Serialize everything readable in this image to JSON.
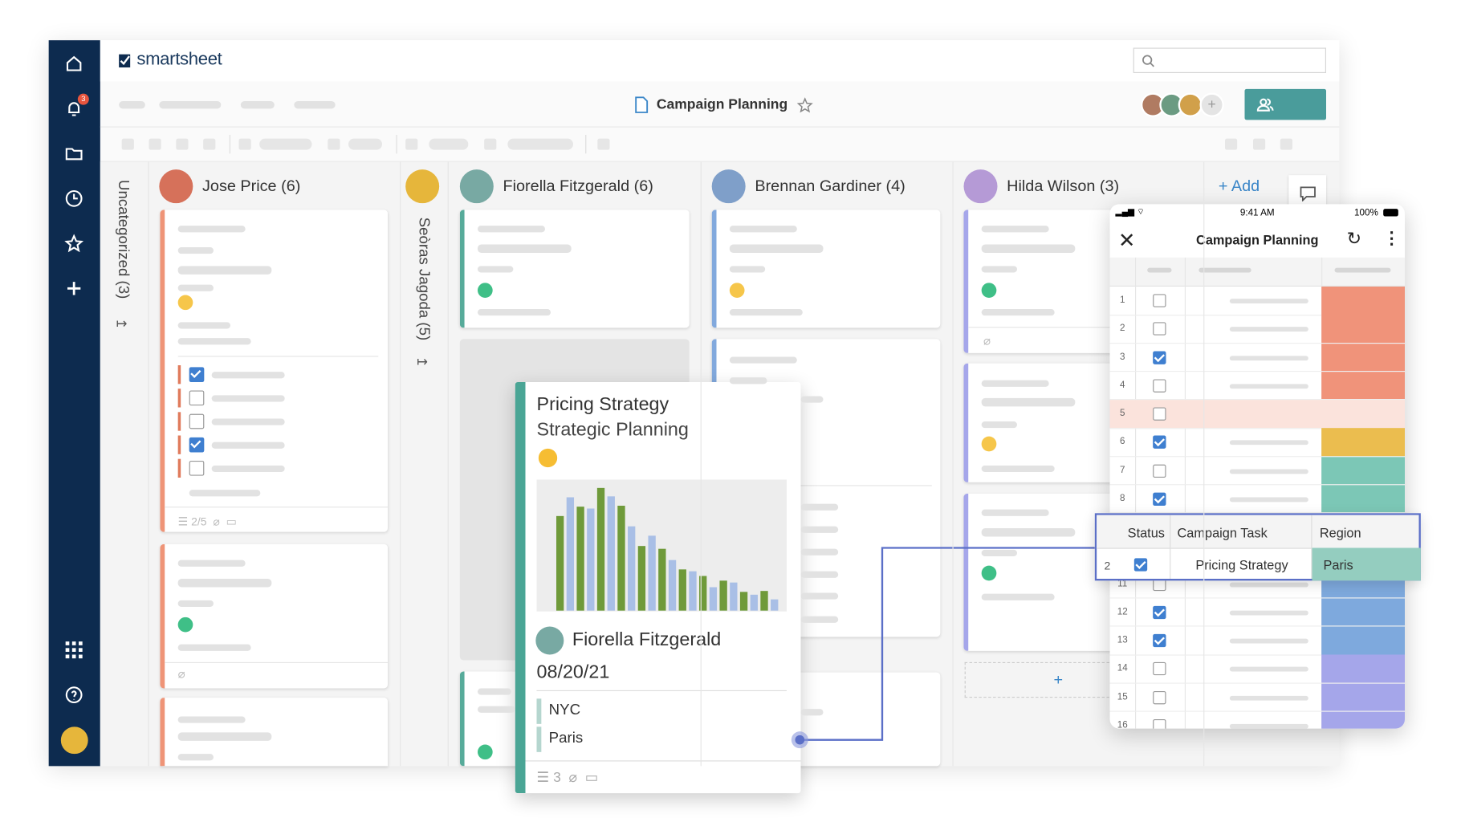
{
  "app": {
    "brand": "smartsheet",
    "sheet_title": "Campaign Planning",
    "notification_count": "3",
    "add_lane": "+ Add"
  },
  "lanes": {
    "uncategorized": "Uncategorized (3)",
    "jose": "Jose Price (6)",
    "seoras": "Seòras Jagoda (5)",
    "fiorella": "Fiorella Fitzgerald (6)",
    "brennan": "Brennan Gardiner (4)",
    "hilda": "Hilda Wilson (3)"
  },
  "jose_card": {
    "checklist_count": "2/5"
  },
  "detail_card": {
    "title": "Pricing Strategy",
    "subtitle": "Strategic Planning",
    "assignee": "Fiorella Fitzgerald",
    "date": "08/20/21",
    "regions": [
      "NYC",
      "Paris"
    ],
    "attachment_count": "3"
  },
  "mobile": {
    "time": "9:41 AM",
    "battery": "100%",
    "title": "Campaign Planning",
    "rows": [
      {
        "number": "1",
        "checked": false,
        "color": "#f0937a"
      },
      {
        "number": "2",
        "checked": false,
        "color": "#f0937a"
      },
      {
        "number": "3",
        "checked": true,
        "color": "#f0937a"
      },
      {
        "number": "4",
        "checked": false,
        "color": "#f0937a"
      },
      {
        "number": "5",
        "checked": false,
        "color": "#fbe3dc"
      },
      {
        "number": "6",
        "checked": true,
        "color": "#ebbd4f"
      },
      {
        "number": "7",
        "checked": false,
        "color": "#7cc7b6"
      },
      {
        "number": "8",
        "checked": true,
        "color": "#7cc7b6"
      },
      {
        "number": "11",
        "checked": false,
        "color": "#7ea9dd"
      },
      {
        "number": "12",
        "checked": true,
        "color": "#7ea9dd"
      },
      {
        "number": "13",
        "checked": true,
        "color": "#7ea9dd"
      },
      {
        "number": "14",
        "checked": false,
        "color": "#a5a6ea"
      },
      {
        "number": "15",
        "checked": false,
        "color": "#a5a6ea"
      },
      {
        "number": "16",
        "checked": false,
        "color": "#a5a6ea"
      }
    ]
  },
  "row_popup": {
    "columns": [
      "Status",
      "Campaign Task",
      "Region"
    ],
    "row": {
      "number": "2",
      "checked": true,
      "task": "Pricing Strategy",
      "region": "Paris",
      "color": "#94cdbf"
    }
  }
}
